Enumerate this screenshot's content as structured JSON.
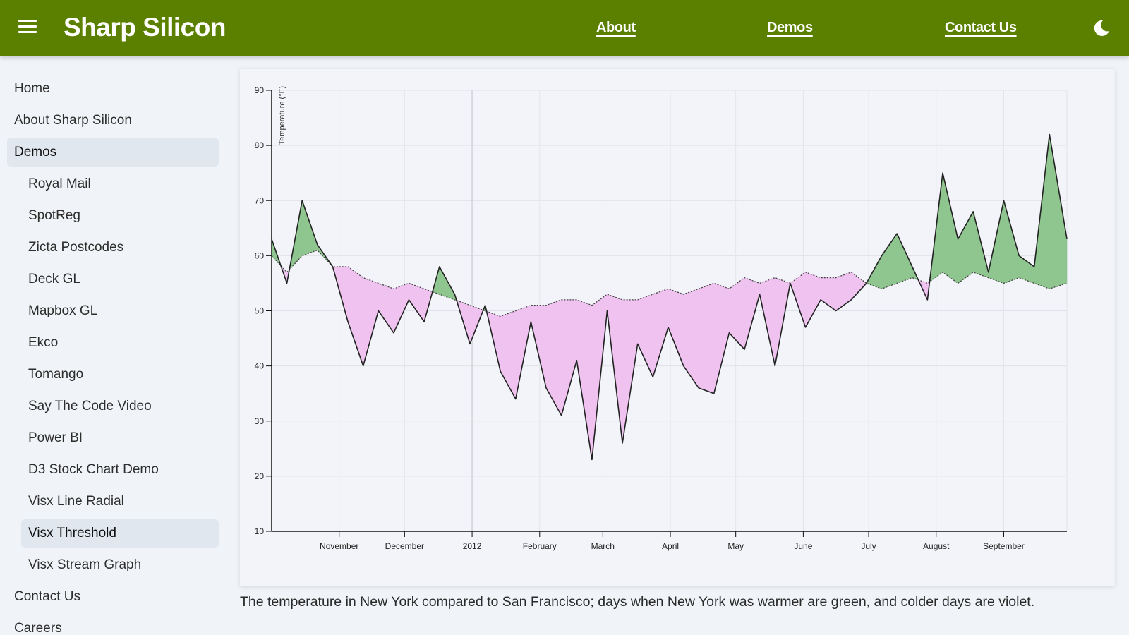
{
  "header": {
    "brand": "Sharp Silicon",
    "nav": [
      "About",
      "Demos",
      "Contact Us"
    ],
    "menu_icon": "hamburger-menu-icon",
    "theme_icon": "moon-icon",
    "color": "#5b8000"
  },
  "sidebar": {
    "items": [
      {
        "label": "Home",
        "level": 1,
        "active": false
      },
      {
        "label": "About Sharp Silicon",
        "level": 1,
        "active": false
      },
      {
        "label": "Demos",
        "level": 1,
        "active": true
      },
      {
        "label": "Royal Mail",
        "level": 2,
        "active": false
      },
      {
        "label": "SpotReg",
        "level": 2,
        "active": false
      },
      {
        "label": "Zicta Postcodes",
        "level": 2,
        "active": false
      },
      {
        "label": "Deck GL",
        "level": 2,
        "active": false
      },
      {
        "label": "Mapbox GL",
        "level": 2,
        "active": false
      },
      {
        "label": "Ekco",
        "level": 2,
        "active": false
      },
      {
        "label": "Tomango",
        "level": 2,
        "active": false
      },
      {
        "label": "Say The Code Video",
        "level": 2,
        "active": false
      },
      {
        "label": "Power BI",
        "level": 2,
        "active": false
      },
      {
        "label": "D3 Stock Chart Demo",
        "level": 2,
        "active": false
      },
      {
        "label": "Visx Line Radial",
        "level": 2,
        "active": false
      },
      {
        "label": "Visx Threshold",
        "level": 2,
        "active": true
      },
      {
        "label": "Visx Stream Graph",
        "level": 2,
        "active": false
      },
      {
        "label": "Contact Us",
        "level": 1,
        "active": false
      },
      {
        "label": "Careers",
        "level": 1,
        "active": false
      }
    ]
  },
  "caption": "The temperature in New York compared to San Francisco; days when New York was warmer are green, and colder days are violet.",
  "chart_data": {
    "type": "area",
    "ylabel": "Temperature (°F)",
    "xlabel": "",
    "ylim": [
      10,
      90
    ],
    "y_ticks": [
      10,
      20,
      30,
      40,
      50,
      60,
      70,
      80,
      90
    ],
    "x_tick_labels": [
      "November",
      "December",
      "2012",
      "February",
      "March",
      "April",
      "May",
      "June",
      "July",
      "August",
      "September"
    ],
    "x_tick_dates": [
      "2011-11-01",
      "2011-12-01",
      "2012-01-01",
      "2012-02-01",
      "2012-03-01",
      "2012-04-01",
      "2012-05-01",
      "2012-06-01",
      "2012-07-01",
      "2012-08-01",
      "2012-09-01"
    ],
    "x_range": [
      "2011-10-01",
      "2012-09-30"
    ],
    "grid": true,
    "colors": {
      "warmer": "#8fc58e",
      "colder": "#efc2f0",
      "line": "#222222"
    },
    "series": [
      {
        "dates": [
          "2011-10-01",
          "2011-10-08",
          "2011-10-15",
          "2011-10-22",
          "2011-10-29",
          "2011-11-05",
          "2011-11-12",
          "2011-11-19",
          "2011-11-26",
          "2011-12-03",
          "2011-12-10",
          "2011-12-17",
          "2011-12-24",
          "2011-12-31",
          "2012-01-07",
          "2012-01-14",
          "2012-01-21",
          "2012-01-28",
          "2012-02-04",
          "2012-02-11",
          "2012-02-18",
          "2012-02-25",
          "2012-03-03",
          "2012-03-10",
          "2012-03-17",
          "2012-03-24",
          "2012-03-31",
          "2012-04-07",
          "2012-04-14",
          "2012-04-21",
          "2012-04-28",
          "2012-05-05",
          "2012-05-12",
          "2012-05-19",
          "2012-05-26",
          "2012-06-02",
          "2012-06-09",
          "2012-06-16",
          "2012-06-23",
          "2012-06-30",
          "2012-07-07",
          "2012-07-14",
          "2012-07-21",
          "2012-07-28",
          "2012-08-04",
          "2012-08-11",
          "2012-08-18",
          "2012-08-25",
          "2012-09-01",
          "2012-09-08",
          "2012-09-15",
          "2012-09-22",
          "2012-09-30"
        ],
        "values": [
          63,
          55,
          70,
          62,
          58,
          48,
          40,
          50,
          46,
          52,
          48,
          58,
          53,
          44,
          51,
          39,
          34,
          48,
          36,
          31,
          41,
          23,
          50,
          26,
          44,
          38,
          47,
          40,
          36,
          35,
          46,
          43,
          53,
          40,
          55,
          47,
          52,
          50,
          52,
          55,
          60,
          64,
          58,
          52,
          75,
          63,
          68,
          57,
          70,
          60,
          58,
          82,
          63
        ]
      },
      {
        "dates": [
          "2011-10-01",
          "2011-10-08",
          "2011-10-15",
          "2011-10-22",
          "2011-10-29",
          "2011-11-05",
          "2011-11-12",
          "2011-11-19",
          "2011-11-26",
          "2011-12-03",
          "2011-12-10",
          "2011-12-17",
          "2011-12-24",
          "2011-12-31",
          "2012-01-07",
          "2012-01-14",
          "2012-01-21",
          "2012-01-28",
          "2012-02-04",
          "2012-02-11",
          "2012-02-18",
          "2012-02-25",
          "2012-03-03",
          "2012-03-10",
          "2012-03-17",
          "2012-03-24",
          "2012-03-31",
          "2012-04-07",
          "2012-04-14",
          "2012-04-21",
          "2012-04-28",
          "2012-05-05",
          "2012-05-12",
          "2012-05-19",
          "2012-05-26",
          "2012-06-02",
          "2012-06-09",
          "2012-06-16",
          "2012-06-23",
          "2012-06-30",
          "2012-07-07",
          "2012-07-14",
          "2012-07-21",
          "2012-07-28",
          "2012-08-04",
          "2012-08-11",
          "2012-08-18",
          "2012-08-25",
          "2012-09-01",
          "2012-09-08",
          "2012-09-15",
          "2012-09-22",
          "2012-09-30"
        ],
        "values": [
          60,
          57,
          60,
          61,
          58,
          58,
          56,
          55,
          54,
          55,
          54,
          53,
          52,
          51,
          50,
          49,
          50,
          51,
          51,
          52,
          52,
          51,
          53,
          52,
          52,
          53,
          54,
          53,
          54,
          55,
          54,
          56,
          55,
          56,
          55,
          57,
          56,
          56,
          57,
          55,
          54,
          55,
          56,
          55,
          57,
          55,
          57,
          56,
          55,
          56,
          55,
          54,
          55
        ]
      }
    ]
  }
}
